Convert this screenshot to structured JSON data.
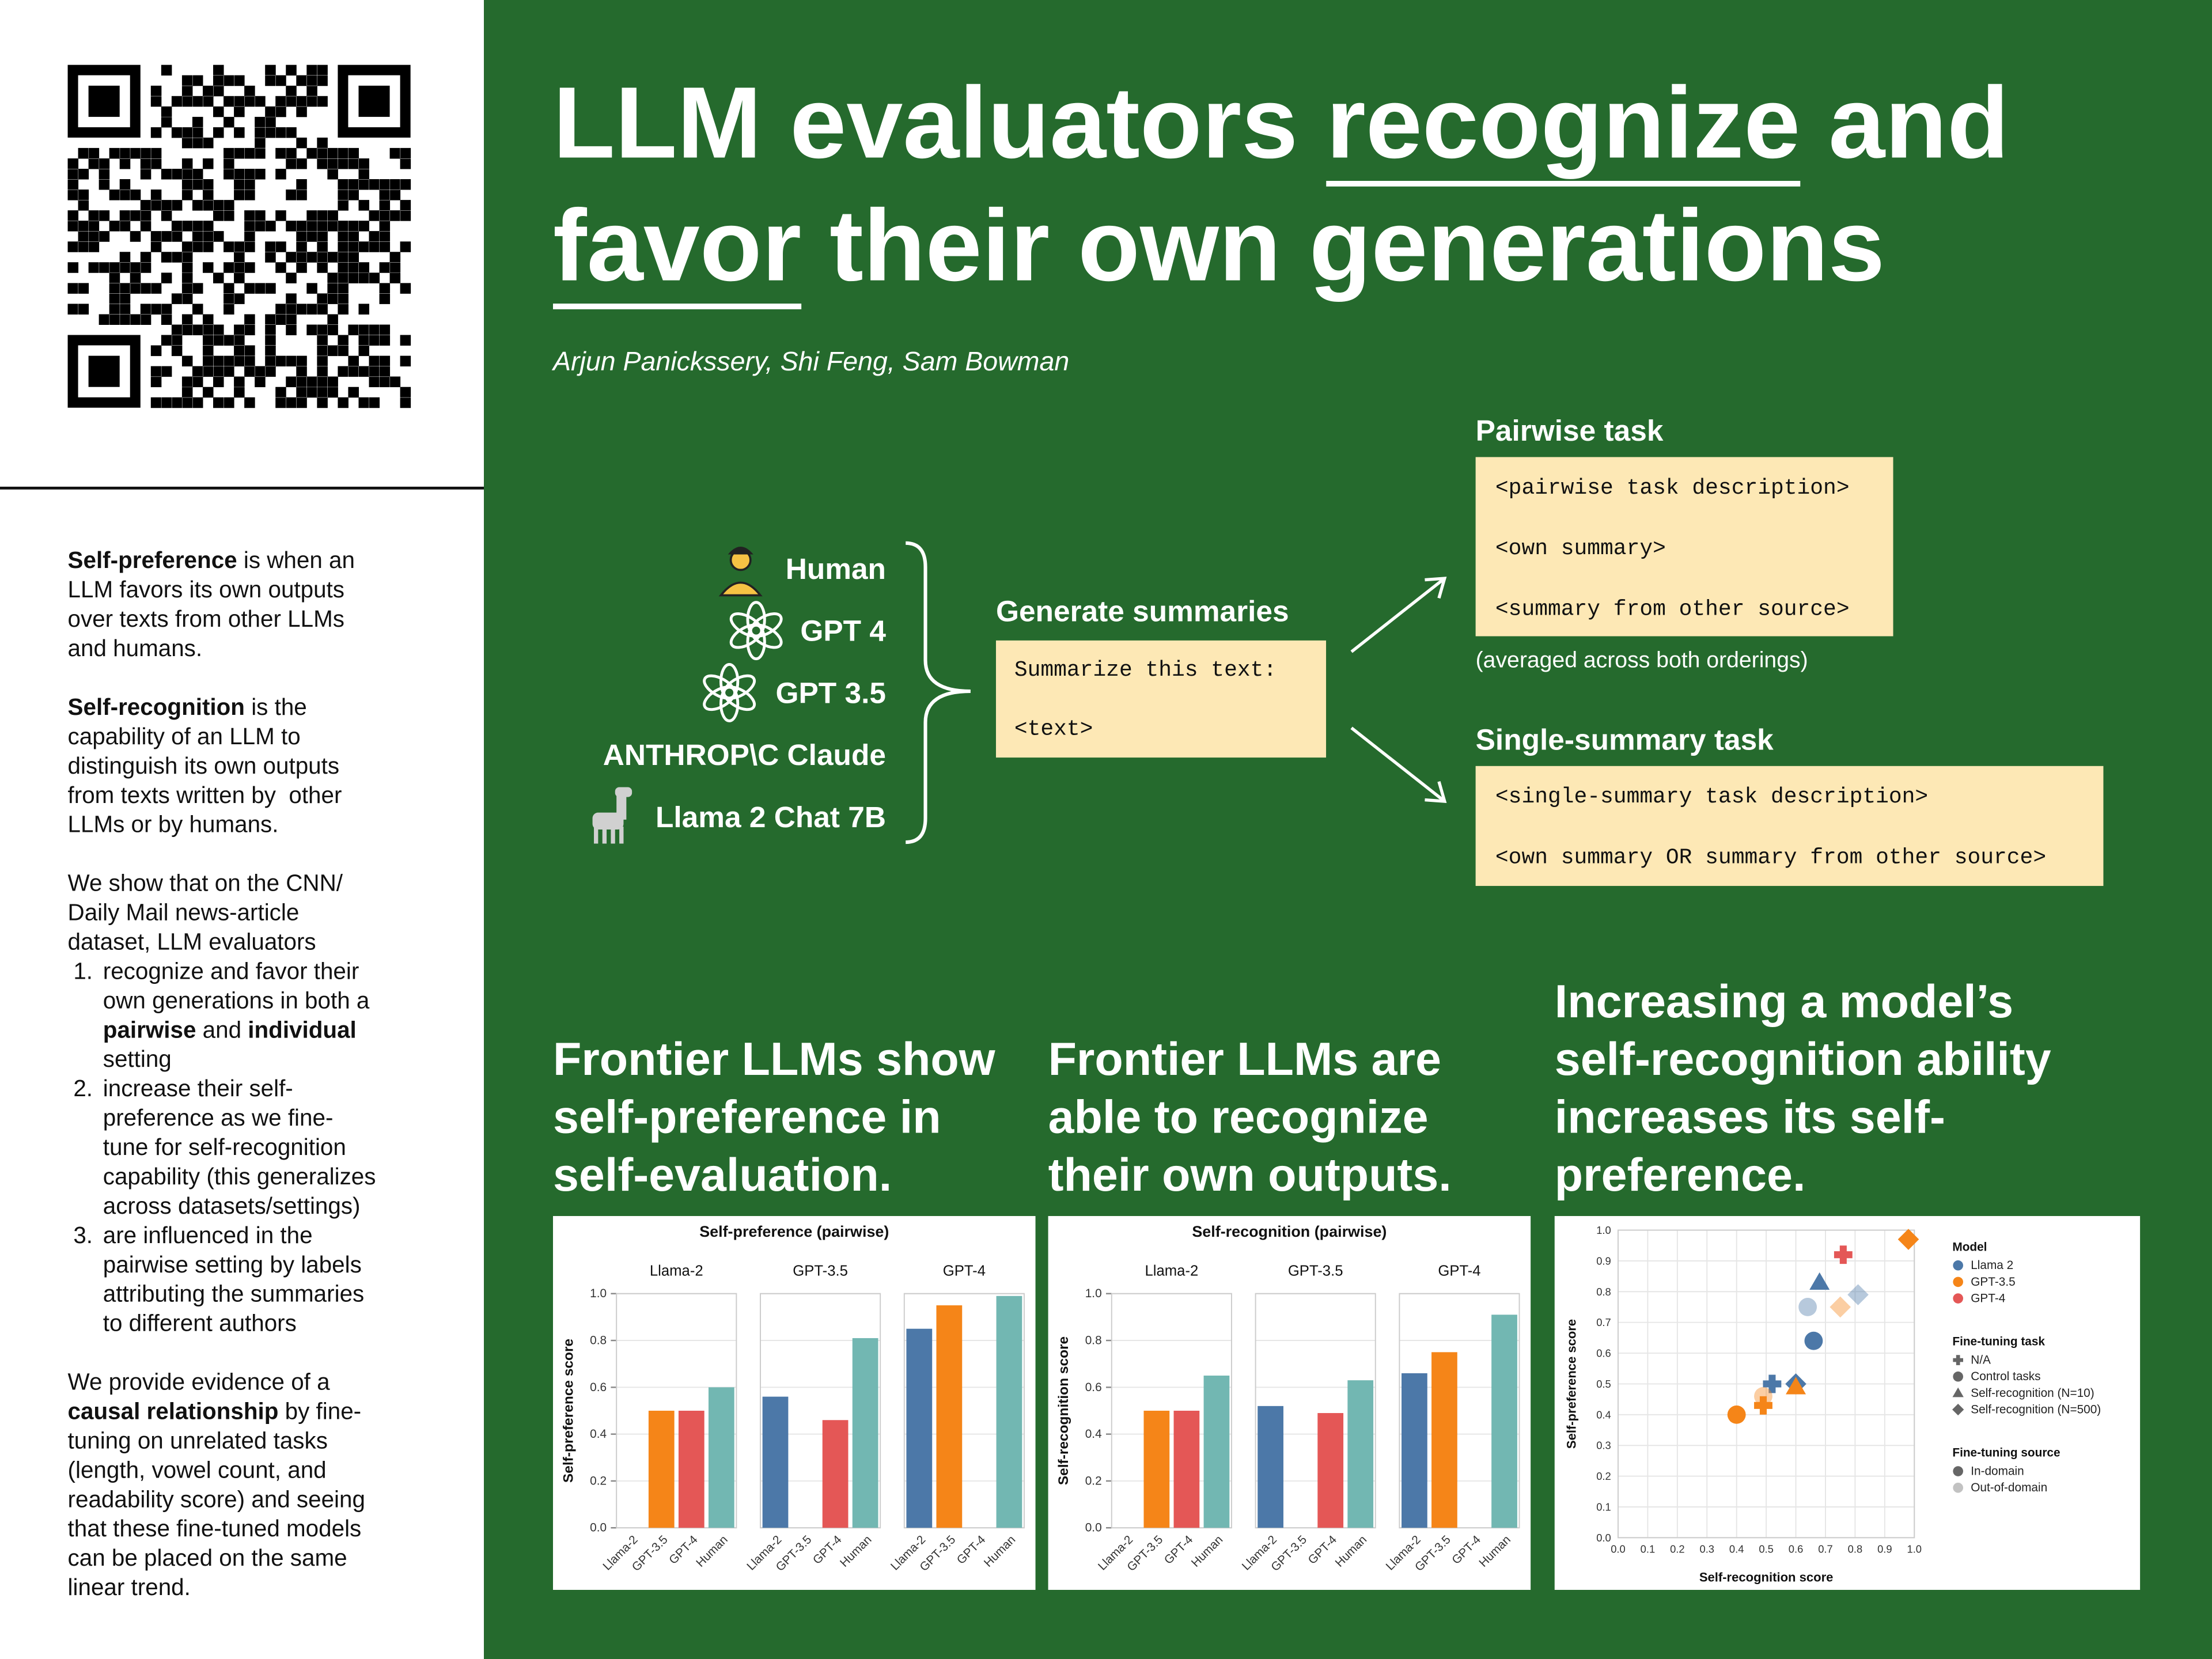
{
  "header": {
    "title": [
      [
        {
          "text": "LLM evaluators "
        },
        {
          "text": "recognize",
          "underline": true
        },
        {
          "text": " and"
        }
      ],
      [
        {
          "text": "favor",
          "underline": true
        },
        {
          "text": " their own generations"
        }
      ]
    ],
    "authors": "Arjun Panickssery, Shi Feng, Sam Bowman"
  },
  "sidebar": {
    "blocks": [
      {
        "lines": [
          [
            {
              "text": "Self-preference",
              "bold": true
            },
            {
              "text": " is when an"
            }
          ],
          "LLM favors its own outputs",
          "over texts from other LLMs",
          "and humans."
        ]
      },
      {
        "lines": [
          [
            {
              "text": "Self-recognition",
              "bold": true
            },
            {
              "text": " is the"
            }
          ],
          "capability of an LLM to",
          "distinguish its own outputs",
          "from texts written by  other",
          "LLMs or by humans."
        ]
      },
      {
        "lines": [
          "We show that on the CNN/",
          "Daily Mail news-article",
          "dataset, LLM evaluators"
        ],
        "items": [
          {
            "marker": "1.",
            "lines": [
              "recognize and favor their",
              "own generations in both a",
              [
                {
                  "text": "pairwise",
                  "bold": true
                },
                {
                  "text": " and "
                },
                {
                  "text": "individual",
                  "bold": true
                }
              ],
              "setting"
            ]
          },
          {
            "marker": "2.",
            "lines": [
              "increase their self-",
              "preference as we fine-",
              "tune for self-recognition",
              "capability (this generalizes",
              "across datasets/settings)"
            ]
          },
          {
            "marker": "3.",
            "lines": [
              "are influenced in the",
              "pairwise setting by labels",
              "attributing the summaries",
              "to different authors"
            ]
          }
        ]
      },
      {
        "lines": [
          "We provide evidence of a",
          [
            {
              "text": "causal relationship",
              "bold": true
            },
            {
              "text": " by fine-"
            }
          ],
          "tuning on unrelated tasks",
          "(length, vowel count, and",
          "readability score) and seeing",
          "that these fine-tuned models",
          "can be placed on the same",
          "linear trend."
        ]
      }
    ]
  },
  "diagram": {
    "sources": [
      "Human",
      "GPT 4",
      "GPT 3.5",
      "ANTHROP\\C Claude",
      "Llama 2 Chat 7B"
    ],
    "generate": {
      "title": "Generate summaries",
      "lines": [
        "Summarize this text:",
        "<text>"
      ]
    },
    "pairwise": {
      "title": "Pairwise task",
      "lines": [
        "<pairwise task description>",
        "<own summary>",
        "<summary from other source>"
      ],
      "note": "(averaged across both orderings)"
    },
    "single": {
      "title": "Single-summary task",
      "lines": [
        "<single-summary task description>",
        "<own summary OR summary from other source>"
      ]
    }
  },
  "sections": [
    {
      "heading": [
        "Frontier LLMs show",
        "self-preference in",
        "self-evaluation."
      ]
    },
    {
      "heading": [
        "Frontier LLMs are",
        "able to recognize",
        "their own outputs."
      ]
    },
    {
      "heading": [
        "Increasing a model’s",
        "self-recognition ability",
        "increases its self-",
        "preference."
      ]
    }
  ],
  "chart_data": [
    {
      "type": "bar",
      "title": "Self-preference (pairwise)",
      "ylabel": "Self-preference score",
      "facets": [
        "Llama-2",
        "GPT-3.5",
        "GPT-4"
      ],
      "categories": [
        "Llama-2",
        "GPT-3.5",
        "GPT-4",
        "Human"
      ],
      "colors": [
        "#4c78a8",
        "#f58518",
        "#e45756",
        "#72b7b2"
      ],
      "values": [
        [
          null,
          0.5,
          0.5,
          0.6
        ],
        [
          0.56,
          null,
          0.46,
          0.81
        ],
        [
          0.85,
          0.95,
          null,
          0.99
        ]
      ],
      "ylim": [
        0,
        1
      ],
      "yticks": [
        {
          "value": 0,
          "label": "0.0"
        },
        {
          "value": 0.2,
          "label": "0.2"
        },
        {
          "value": 0.4,
          "label": "0.4"
        },
        {
          "value": 0.6,
          "label": "0.6"
        },
        {
          "value": 0.8,
          "label": "0.8"
        },
        {
          "value": 1,
          "label": "1.0"
        }
      ],
      "grid": true
    },
    {
      "type": "bar",
      "title": "Self-recognition (pairwise)",
      "ylabel": "Self-recognition score",
      "facets": [
        "Llama-2",
        "GPT-3.5",
        "GPT-4"
      ],
      "categories": [
        "Llama-2",
        "GPT-3.5",
        "GPT-4",
        "Human"
      ],
      "colors": [
        "#4c78a8",
        "#f58518",
        "#e45756",
        "#72b7b2"
      ],
      "values": [
        [
          null,
          0.5,
          0.5,
          0.65
        ],
        [
          0.52,
          null,
          0.49,
          0.63
        ],
        [
          0.66,
          0.75,
          null,
          0.91
        ]
      ],
      "ylim": [
        0,
        1
      ],
      "yticks": [
        {
          "value": 0,
          "label": "0.0"
        },
        {
          "value": 0.2,
          "label": "0.2"
        },
        {
          "value": 0.4,
          "label": "0.4"
        },
        {
          "value": 0.6,
          "label": "0.6"
        },
        {
          "value": 0.8,
          "label": "0.8"
        },
        {
          "value": 1,
          "label": "1.0"
        }
      ],
      "grid": true
    },
    {
      "type": "scatter",
      "xlabel": "Self-recognition score",
      "ylabel": "Self-preference score",
      "xlim": [
        0,
        1
      ],
      "ylim": [
        0,
        1
      ],
      "xticks": [
        {
          "value": 0,
          "label": "0.0"
        },
        {
          "value": 0.1,
          "label": "0.1"
        },
        {
          "value": 0.2,
          "label": "0.2"
        },
        {
          "value": 0.3,
          "label": "0.3"
        },
        {
          "value": 0.4,
          "label": "0.4"
        },
        {
          "value": 0.5,
          "label": "0.5"
        },
        {
          "value": 0.6,
          "label": "0.6"
        },
        {
          "value": 0.7,
          "label": "0.7"
        },
        {
          "value": 0.8,
          "label": "0.8"
        },
        {
          "value": 0.9,
          "label": "0.9"
        },
        {
          "value": 1,
          "label": "1.0"
        }
      ],
      "yticks": [
        {
          "value": 0,
          "label": "0.0"
        },
        {
          "value": 0.1,
          "label": "0.1"
        },
        {
          "value": 0.2,
          "label": "0.2"
        },
        {
          "value": 0.3,
          "label": "0.3"
        },
        {
          "value": 0.4,
          "label": "0.4"
        },
        {
          "value": 0.5,
          "label": "0.5"
        },
        {
          "value": 0.6,
          "label": "0.6"
        },
        {
          "value": 0.7,
          "label": "0.7"
        },
        {
          "value": 0.8,
          "label": "0.8"
        },
        {
          "value": 0.9,
          "label": "0.9"
        },
        {
          "value": 1,
          "label": "1.0"
        }
      ],
      "grid": true,
      "x": [
        0.98,
        0.76,
        0.68,
        0.81,
        0.64,
        0.75,
        0.66,
        0.52,
        0.6,
        0.6,
        0.4,
        0.49,
        0.49
      ],
      "y": [
        0.97,
        0.92,
        0.83,
        0.79,
        0.75,
        0.75,
        0.64,
        0.5,
        0.5,
        0.49,
        0.4,
        0.46,
        0.43
      ],
      "model": [
        1,
        2,
        0,
        0,
        0,
        1,
        0,
        0,
        0,
        1,
        1,
        1,
        1
      ],
      "task": [
        3,
        0,
        2,
        3,
        1,
        3,
        1,
        0,
        3,
        2,
        1,
        1,
        0
      ],
      "source": [
        0,
        0,
        0,
        1,
        1,
        1,
        0,
        0,
        0,
        0,
        0,
        1,
        0
      ],
      "legend": [
        {
          "title": "Model",
          "items": [
            {
              "label": "Llama 2",
              "color": "#4c78a8"
            },
            {
              "label": "GPT-3.5",
              "color": "#f58518"
            },
            {
              "label": "GPT-4",
              "color": "#e45756"
            }
          ]
        },
        {
          "title": "Fine-tuning task",
          "items": [
            {
              "label": "N/A",
              "shape": "plus"
            },
            {
              "label": "Control tasks",
              "shape": "circle"
            },
            {
              "label": "Self-recognition (N=10)",
              "shape": "triangle"
            },
            {
              "label": "Self-recognition (N=500)",
              "shape": "diamond"
            }
          ]
        },
        {
          "title": "Fine-tuning source",
          "items": [
            {
              "label": "In-domain",
              "opacity": 1
            },
            {
              "label": "Out-of-domain",
              "opacity": 0.4
            }
          ]
        }
      ]
    }
  ]
}
